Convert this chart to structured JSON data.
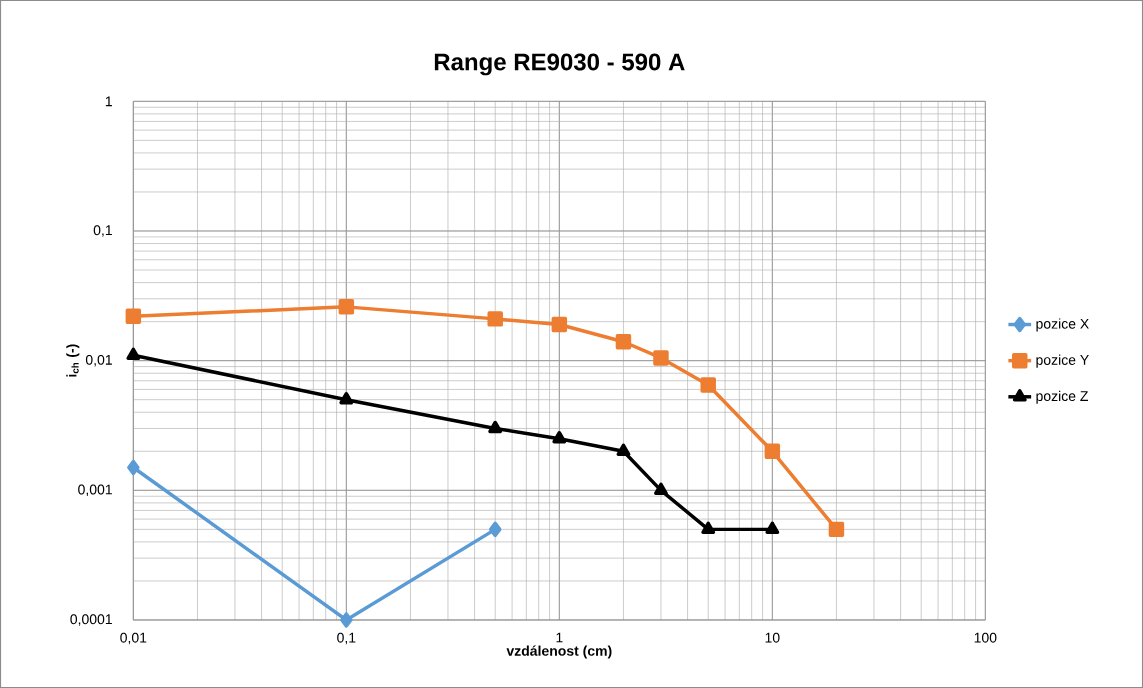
{
  "chart_data": {
    "type": "line",
    "title": "Range RE9030 - 590 A",
    "xlabel": "vzdálenost (cm)",
    "ylabel": "i$_{ch}$ (-)",
    "log": "xy",
    "grid": true,
    "legend": "right",
    "line_style": "solid",
    "xlim": [
      0.01,
      100
    ],
    "ylim": [
      0.0001,
      1
    ],
    "xticks": [
      {
        "value": 0.01,
        "label": "0,01"
      },
      {
        "value": 0.1,
        "label": "0,1"
      },
      1,
      10,
      100
    ],
    "yticks": [
      {
        "value": 0.0001,
        "label": "0,0001"
      },
      {
        "value": 0.001,
        "label": "0,001"
      },
      {
        "value": 0.01,
        "label": "0,01"
      },
      {
        "value": 0.1,
        "label": "0,1"
      },
      1
    ],
    "series": [
      {
        "name": "pozice X",
        "color": "#5b9bd5",
        "marker": "diamond",
        "x": [
          0.01,
          0.1,
          0.5
        ],
        "values": [
          0.0015,
          0.0001,
          0.0005
        ]
      },
      {
        "name": "pozice Y",
        "color": "#ed7d31",
        "marker": "square",
        "x": [
          0.01,
          0.1,
          0.5,
          1,
          2,
          3,
          5,
          10,
          20
        ],
        "values": [
          0.022,
          0.026,
          0.021,
          0.019,
          0.014,
          0.0105,
          0.0065,
          0.002,
          0.0005
        ]
      },
      {
        "name": "pozice Z",
        "color": "#000000",
        "marker": "triangle",
        "x": [
          0.01,
          0.1,
          0.5,
          1,
          2,
          3,
          5,
          10
        ],
        "values": [
          0.011,
          0.005,
          0.003,
          0.0025,
          0.002,
          0.001,
          0.0005,
          0.0005
        ]
      }
    ]
  }
}
